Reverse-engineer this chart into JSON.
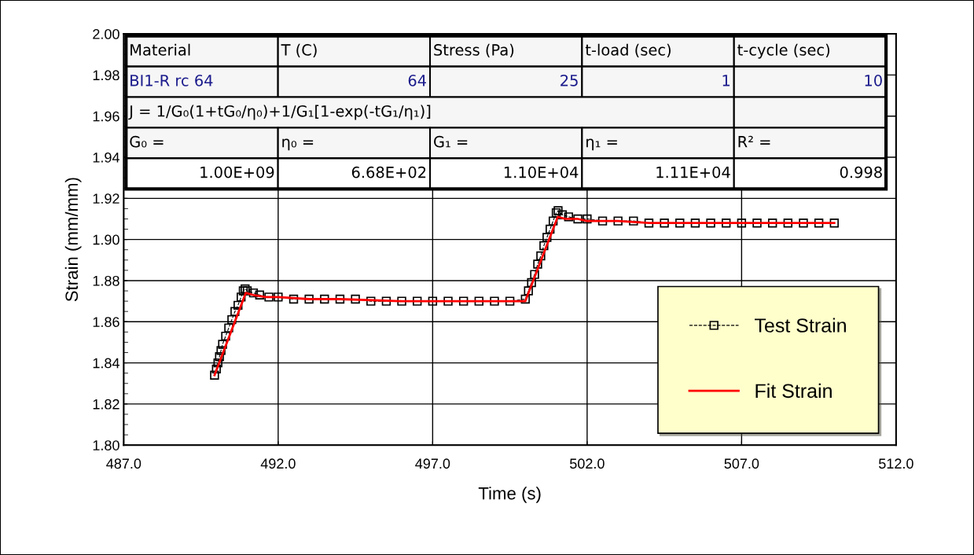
{
  "chart_data": {
    "type": "line",
    "xlabel": "Time (s)",
    "ylabel": "Strain (mm/mm)",
    "xlim": [
      487,
      512
    ],
    "xticks": [
      {
        "value": 487,
        "label": "487.0"
      },
      {
        "value": 492,
        "label": "492.0"
      },
      {
        "value": 497,
        "label": "497.0"
      },
      {
        "value": 502,
        "label": "502.0"
      },
      {
        "value": 507,
        "label": "507.0"
      },
      {
        "value": 512,
        "label": "512.0"
      }
    ],
    "ylim": [
      1.8,
      2.0
    ],
    "yticks": [
      {
        "value": 1.8,
        "label": "1.80"
      },
      {
        "value": 1.82,
        "label": "1.82"
      },
      {
        "value": 1.84,
        "label": "1.84"
      },
      {
        "value": 1.86,
        "label": "1.86"
      },
      {
        "value": 1.88,
        "label": "1.88"
      },
      {
        "value": 1.9,
        "label": "1.90"
      },
      {
        "value": 1.92,
        "label": "1.92"
      },
      {
        "value": 1.94,
        "label": "1.94"
      },
      {
        "value": 1.96,
        "label": "1.96"
      },
      {
        "value": 1.98,
        "label": "1.98"
      },
      {
        "value": 2.0,
        "label": "2.00"
      }
    ],
    "grid": true,
    "legend": "bottom right",
    "marker": "square",
    "line_style": "dashed",
    "series": [
      {
        "name": "Test Strain",
        "color": "#000000",
        "x": [
          489.94,
          490.0,
          490.05,
          490.1,
          490.15,
          490.2,
          490.3,
          490.4,
          490.5,
          490.6,
          490.7,
          490.8,
          490.87,
          490.93,
          491.0,
          491.2,
          491.4,
          491.7,
          492.0,
          492.5,
          493.0,
          493.5,
          494.0,
          494.5,
          495.0,
          495.5,
          496.0,
          496.5,
          497.0,
          497.5,
          498.0,
          498.5,
          499.0,
          499.5,
          500.0,
          500.1,
          500.2,
          500.3,
          500.4,
          500.5,
          500.6,
          500.7,
          500.8,
          500.9,
          501.0,
          501.06,
          501.2,
          501.4,
          501.7,
          502.0,
          502.5,
          503.0,
          503.5,
          504.0,
          504.5,
          505.0,
          505.5,
          506.0,
          506.5,
          507.0,
          507.5,
          508.0,
          508.5,
          509.0,
          509.5,
          510.0
        ],
        "values": [
          1.834,
          1.837,
          1.84,
          1.843,
          1.846,
          1.849,
          1.853,
          1.857,
          1.861,
          1.865,
          1.868,
          1.872,
          1.875,
          1.876,
          1.875,
          1.874,
          1.873,
          1.872,
          1.872,
          1.871,
          1.871,
          1.871,
          1.871,
          1.871,
          1.87,
          1.87,
          1.87,
          1.87,
          1.87,
          1.87,
          1.87,
          1.87,
          1.87,
          1.87,
          1.871,
          1.875,
          1.879,
          1.883,
          1.888,
          1.892,
          1.897,
          1.901,
          1.905,
          1.909,
          1.913,
          1.914,
          1.912,
          1.911,
          1.91,
          1.91,
          1.909,
          1.909,
          1.909,
          1.908,
          1.908,
          1.908,
          1.908,
          1.908,
          1.908,
          1.908,
          1.908,
          1.908,
          1.908,
          1.908,
          1.908,
          1.908
        ]
      },
      {
        "name": "Fit Strain",
        "line_style": "solid",
        "marker": "none",
        "color": "#ff0000",
        "x": [
          489.94,
          490.95,
          491.2,
          491.6,
          492.0,
          493.0,
          494.0,
          496.0,
          498.0,
          500.0,
          501.05,
          501.3,
          501.7,
          502.0,
          503.0,
          504.0,
          506.0,
          508.0,
          510.0
        ],
        "values": [
          1.834,
          1.874,
          1.873,
          1.872,
          1.872,
          1.871,
          1.871,
          1.87,
          1.87,
          1.87,
          1.911,
          1.91,
          1.91,
          1.909,
          1.909,
          1.908,
          1.908,
          1.908,
          1.908
        ]
      }
    ],
    "annotations": [
      "Material",
      "T (C)",
      "Stress (Pa)",
      "t-load (sec)",
      "t-cycle (sec)",
      "BI1-R rc 64",
      "64",
      "25",
      "1",
      "10",
      "J = 1/G₀(1+tG₀/η₀)+1/G₁[1-exp(-tG₁/η₁)]",
      "G₀ =",
      "η₀ =",
      "G₁ =",
      "η₁ =",
      "R² =",
      "1.00E+09",
      "6.68E+02",
      "1.10E+04",
      "1.11E+04",
      "0.998"
    ]
  }
}
